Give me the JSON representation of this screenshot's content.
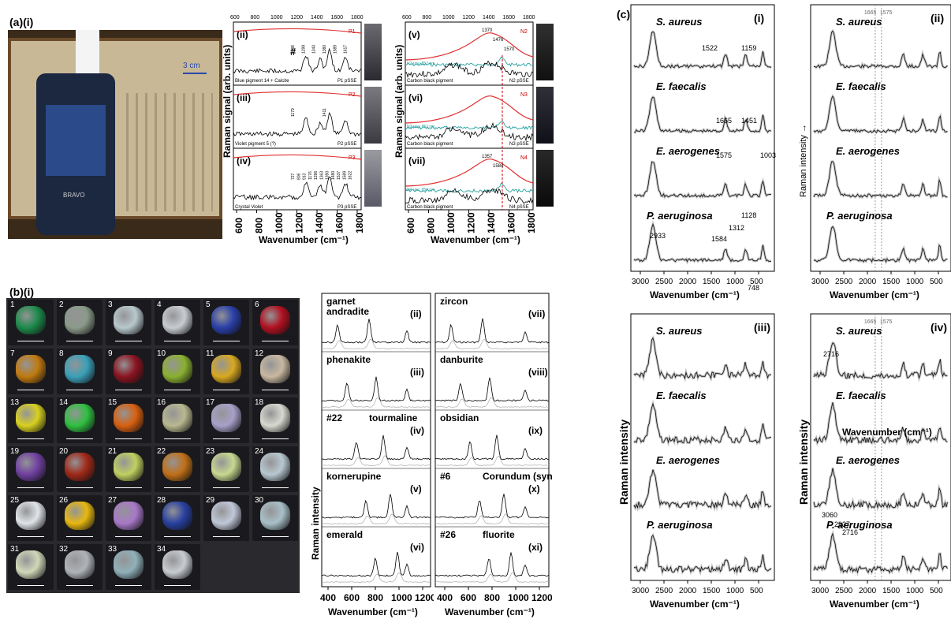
{
  "panel_a": {
    "label": "(a)(i)",
    "photo": {
      "scale_bar": "3 cm",
      "device_brand": "BRAVO"
    },
    "left_plot": {
      "ylabel": "Raman signal (arb. units)",
      "xlabel": "Wavenumber (cm⁻¹)",
      "xticks_top": [
        "600",
        "800",
        "1000",
        "1200",
        "1400",
        "1600",
        "1800"
      ],
      "xticks_bottom": [
        "600",
        "800",
        "1000",
        "1200",
        "1400",
        "1600",
        "1800"
      ],
      "rows": [
        {
          "id": "(ii)",
          "tag": "P1",
          "caption_left": "Blue pigment 14 + Calcite",
          "caption_right": "P1 pSSE",
          "marker": "#",
          "peaks": [
            "1188",
            "1299",
            "1340",
            "1380",
            "1589",
            "1617"
          ]
        },
        {
          "id": "(iii)",
          "tag": "P2",
          "caption_left": "Violet pigment 5 (?)",
          "caption_right": "P2 pSSE",
          "peaks": [
            "1179",
            "1411"
          ]
        },
        {
          "id": "(iv)",
          "tag": "P3",
          "caption_left": "Crystal Violet",
          "caption_right": "P3 pSSE",
          "peaks": [
            "727",
            "806",
            "913",
            "1176",
            "1296",
            "1363",
            "1390",
            "1480",
            "1537",
            "1589",
            "1622"
          ]
        }
      ]
    },
    "right_plot": {
      "ylabel": "Raman signal (arb. units)",
      "xlabel": "Wavenumber (cm⁻¹)",
      "rows": [
        {
          "id": "(v)",
          "tag": "N2",
          "caption_left": "Carbon black pigment",
          "caption_right": "N2 pSSE",
          "raw": "N2 raw_852 nm",
          "peaks": [
            "1370",
            "1476",
            "1570"
          ]
        },
        {
          "id": "(vi)",
          "tag": "N3",
          "caption_left": "Carbon black pigment",
          "caption_right": "N3 pSSE",
          "raw": "N3 raw_852 nm"
        },
        {
          "id": "(vii)",
          "tag": "N4",
          "caption_left": "Carbon black pigment",
          "caption_right": "N4 pSSE",
          "raw": "N4 raw_852 nm",
          "peaks": [
            "1357",
            "1584"
          ]
        }
      ]
    }
  },
  "panel_b": {
    "label": "(b)(i)",
    "gems": [
      {
        "n": "1",
        "c": "#1c8a4a"
      },
      {
        "n": "2",
        "c": "#8a9a8a"
      },
      {
        "n": "3",
        "c": "#b8c8cc"
      },
      {
        "n": "4",
        "c": "#c8ccd0"
      },
      {
        "n": "5",
        "c": "#2a3fa8"
      },
      {
        "n": "6",
        "c": "#b01020"
      },
      {
        "n": "7",
        "c": "#c07a10"
      },
      {
        "n": "8",
        "c": "#3aa0b8"
      },
      {
        "n": "9",
        "c": "#8a1420"
      },
      {
        "n": "10",
        "c": "#8ab030"
      },
      {
        "n": "11",
        "c": "#d8a820"
      },
      {
        "n": "12",
        "c": "#c8b8a0"
      },
      {
        "n": "13",
        "c": "#d8d020"
      },
      {
        "n": "14",
        "c": "#30c040"
      },
      {
        "n": "15",
        "c": "#d86010"
      },
      {
        "n": "16",
        "c": "#b8b890"
      },
      {
        "n": "17",
        "c": "#a8a0c8"
      },
      {
        "n": "18",
        "c": "#d8d8d0"
      },
      {
        "n": "19",
        "c": "#7040a0"
      },
      {
        "n": "20",
        "c": "#a02818"
      },
      {
        "n": "21",
        "c": "#c0d060"
      },
      {
        "n": "22",
        "c": "#c07018"
      },
      {
        "n": "23",
        "c": "#c8d890"
      },
      {
        "n": "24",
        "c": "#b8c8d0"
      },
      {
        "n": "25",
        "c": "#e0e4e8"
      },
      {
        "n": "26",
        "c": "#e8b810"
      },
      {
        "n": "27",
        "c": "#a878c8"
      },
      {
        "n": "28",
        "c": "#2840a0"
      },
      {
        "n": "29",
        "c": "#c0c8d8"
      },
      {
        "n": "30",
        "c": "#a8c0c8"
      },
      {
        "n": "31",
        "c": "#d0d8b8"
      },
      {
        "n": "32",
        "c": "#b0b4b8"
      },
      {
        "n": "33",
        "c": "#90b0b8"
      },
      {
        "n": "34",
        "c": "#c8ccd0"
      }
    ],
    "left_plot": {
      "ylabel": "Raman intensity",
      "xlabel": "Wavenumber (cm⁻¹)",
      "xticks": [
        "400",
        "600",
        "800",
        "1000",
        "1200"
      ],
      "rows": [
        {
          "name": "garnet\nandradite",
          "id": "(ii)"
        },
        {
          "name": "phenakite",
          "id": "(iii)"
        },
        {
          "name": "tourmaline",
          "prefix": "#22",
          "id": "(iv)"
        },
        {
          "name": "kornerupine",
          "id": "(v)"
        },
        {
          "name": "emerald",
          "id": "(vi)"
        }
      ]
    },
    "right_plot": {
      "xlabel": "Wavenumber (cm⁻¹)",
      "xticks": [
        "400",
        "600",
        "800",
        "1000",
        "1200"
      ],
      "rows": [
        {
          "name": "zircon",
          "id": "(vii)"
        },
        {
          "name": "danburite",
          "id": "(viii)"
        },
        {
          "name": "obsidian",
          "id": "(ix)"
        },
        {
          "name": "Corundum (synth.)",
          "prefix": "#6",
          "id": "(x)"
        },
        {
          "name": "fluorite",
          "prefix": "#26",
          "id": "(xi)"
        }
      ]
    }
  },
  "panel_c": {
    "label": "(c)",
    "bacteria": [
      "S. aureus",
      "E. faecalis",
      "E. aerogenes",
      "P. aeruginosa"
    ],
    "xticks": [
      "3000",
      "2500",
      "2000",
      "1500",
      "1000",
      "500"
    ],
    "xlabel": "Wavenumber (cm⁻¹)",
    "ylabel": "Raman intensity",
    "ylabel_arrow": "Raman intensity →",
    "sub_i": {
      "id": "(i)",
      "peaks": [
        "1522",
        "1159",
        "1665",
        "1451",
        "1575",
        "1003",
        "2933",
        "1584",
        "1312",
        "1128",
        "748"
      ]
    },
    "sub_ii": {
      "id": "(ii)",
      "lines": [
        "1665",
        "1575"
      ]
    },
    "sub_iii": {
      "id": "(iii)"
    },
    "sub_iv": {
      "id": "(iv)",
      "lines": [
        "1665",
        "1575"
      ],
      "peaks": [
        "2716",
        "3060",
        "2937",
        "2716"
      ],
      "stray": "Wavenumber (cm⁻¹)"
    }
  }
}
